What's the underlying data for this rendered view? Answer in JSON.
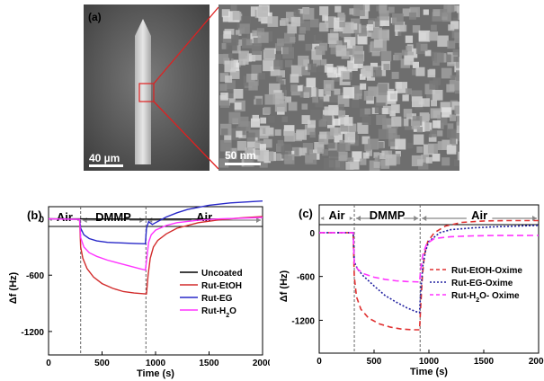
{
  "panel_a": {
    "label": "(a)",
    "scale_left": "40 µm",
    "scale_right": "50 nm"
  },
  "chart_data": [
    {
      "type": "line",
      "panel_label": "(b)",
      "xlabel": "Time (s)",
      "ylabel": "Δf (Hz)",
      "xlim": [
        0,
        2000
      ],
      "ylim": [
        -1450,
        130
      ],
      "x_ticks": [
        0,
        500,
        1000,
        1500,
        2000
      ],
      "y_ticks": [
        0,
        -600,
        -1200
      ],
      "grid": false,
      "legend_position": "center-right",
      "phase_boundaries": [
        300,
        910
      ],
      "phases": [
        {
          "label": "Air",
          "from": 0,
          "to": 300
        },
        {
          "label": "DMMP",
          "from": 300,
          "to": 910
        },
        {
          "label": "Air",
          "from": 910,
          "to": 2000
        }
      ],
      "series": [
        {
          "name": "Uncoated",
          "color": "#000000",
          "points": [
            [
              0,
              0
            ],
            [
              300,
              0
            ],
            [
              600,
              -2
            ],
            [
              900,
              -3
            ],
            [
              1200,
              -2
            ],
            [
              1650,
              -2
            ]
          ]
        },
        {
          "name": "Rut-EtOH",
          "color": "#d22b2b",
          "points": [
            [
              0,
              0
            ],
            [
              290,
              -5
            ],
            [
              300,
              -300
            ],
            [
              320,
              -420
            ],
            [
              360,
              -530
            ],
            [
              420,
              -620
            ],
            [
              500,
              -690
            ],
            [
              600,
              -740
            ],
            [
              700,
              -775
            ],
            [
              800,
              -790
            ],
            [
              905,
              -800
            ],
            [
              915,
              -800
            ],
            [
              930,
              -600
            ],
            [
              950,
              -420
            ],
            [
              980,
              -300
            ],
            [
              1020,
              -230
            ],
            [
              1100,
              -160
            ],
            [
              1200,
              -100
            ],
            [
              1400,
              -40
            ],
            [
              1600,
              -10
            ],
            [
              1800,
              10
            ],
            [
              2000,
              25
            ]
          ]
        },
        {
          "name": "Rut-EG",
          "color": "#2828c8",
          "points": [
            [
              0,
              0
            ],
            [
              290,
              -5
            ],
            [
              300,
              -100
            ],
            [
              330,
              -170
            ],
            [
              380,
              -210
            ],
            [
              450,
              -235
            ],
            [
              550,
              -250
            ],
            [
              650,
              -255
            ],
            [
              800,
              -262
            ],
            [
              905,
              -265
            ],
            [
              915,
              -100
            ],
            [
              935,
              -30
            ],
            [
              970,
              -60
            ],
            [
              1000,
              -40
            ],
            [
              1100,
              20
            ],
            [
              1200,
              65
            ],
            [
              1300,
              100
            ],
            [
              1500,
              145
            ],
            [
              1700,
              170
            ],
            [
              2000,
              190
            ]
          ]
        },
        {
          "name": "Rut-H2O",
          "color": "#ff33ff",
          "points": [
            [
              0,
              0
            ],
            [
              290,
              -5
            ],
            [
              300,
              -200
            ],
            [
              330,
              -300
            ],
            [
              380,
              -360
            ],
            [
              450,
              -400
            ],
            [
              550,
              -440
            ],
            [
              650,
              -470
            ],
            [
              750,
              -500
            ],
            [
              850,
              -530
            ],
            [
              905,
              -545
            ],
            [
              915,
              -450
            ],
            [
              935,
              -250
            ],
            [
              960,
              -170
            ],
            [
              1000,
              -120
            ],
            [
              1100,
              -70
            ],
            [
              1200,
              -40
            ],
            [
              1400,
              -15
            ],
            [
              1600,
              0
            ],
            [
              2000,
              15
            ]
          ]
        }
      ],
      "legend": [
        "Uncoated",
        "Rut-EtOH",
        "Rut-EG",
        "Rut-H2O"
      ]
    },
    {
      "type": "line",
      "panel_label": "(c)",
      "xlabel": "Time (s)",
      "ylabel": "Δf (Hz)",
      "xlim": [
        0,
        2000
      ],
      "ylim": [
        -1650,
        380
      ],
      "x_ticks": [
        0,
        500,
        1000,
        1500,
        2000
      ],
      "y_ticks": [
        0,
        -600,
        -1200
      ],
      "grid": false,
      "legend_position": "lower-right",
      "phase_boundaries": [
        320,
        920
      ],
      "phases": [
        {
          "label": "Air",
          "from": 0,
          "to": 320
        },
        {
          "label": "DMMP",
          "from": 320,
          "to": 920
        },
        {
          "label": "Air",
          "from": 920,
          "to": 2000
        }
      ],
      "series": [
        {
          "name": "Rut-EtOH-Oxime",
          "color": "#e03030",
          "dash": "6,4",
          "points": [
            [
              0,
              0
            ],
            [
              310,
              0
            ],
            [
              320,
              -600
            ],
            [
              340,
              -880
            ],
            [
              380,
              -1050
            ],
            [
              450,
              -1170
            ],
            [
              550,
              -1250
            ],
            [
              650,
              -1295
            ],
            [
              750,
              -1320
            ],
            [
              850,
              -1330
            ],
            [
              915,
              -1330
            ],
            [
              925,
              -1000
            ],
            [
              940,
              -600
            ],
            [
              960,
              -300
            ],
            [
              990,
              -120
            ],
            [
              1050,
              0
            ],
            [
              1150,
              90
            ],
            [
              1300,
              140
            ],
            [
              1500,
              160
            ],
            [
              1700,
              165
            ],
            [
              2000,
              165
            ]
          ]
        },
        {
          "name": "Rut-EG-Oxime",
          "color": "#2020a0",
          "dash": "2,2",
          "points": [
            [
              0,
              0
            ],
            [
              310,
              0
            ],
            [
              320,
              -400
            ],
            [
              350,
              -500
            ],
            [
              400,
              -590
            ],
            [
              500,
              -730
            ],
            [
              600,
              -860
            ],
            [
              700,
              -950
            ],
            [
              800,
              -1030
            ],
            [
              880,
              -1080
            ],
            [
              915,
              -1095
            ],
            [
              925,
              -800
            ],
            [
              945,
              -450
            ],
            [
              970,
              -250
            ],
            [
              1000,
              -120
            ],
            [
              1100,
              0
            ],
            [
              1200,
              40
            ],
            [
              1400,
              65
            ],
            [
              1600,
              80
            ],
            [
              1800,
              90
            ],
            [
              2000,
              100
            ]
          ]
        },
        {
          "name": "Rut-H2O- Oxime",
          "color": "#ff33ff",
          "dash": "7,4",
          "points": [
            [
              0,
              0
            ],
            [
              310,
              0
            ],
            [
              320,
              -420
            ],
            [
              350,
              -500
            ],
            [
              400,
              -560
            ],
            [
              500,
              -610
            ],
            [
              600,
              -640
            ],
            [
              700,
              -660
            ],
            [
              800,
              -670
            ],
            [
              915,
              -675
            ],
            [
              925,
              -500
            ],
            [
              945,
              -300
            ],
            [
              980,
              -150
            ],
            [
              1050,
              -80
            ],
            [
              1200,
              -55
            ],
            [
              1400,
              -45
            ],
            [
              1600,
              -40
            ],
            [
              2000,
              -38
            ]
          ]
        }
      ],
      "legend": [
        "Rut-EtOH-Oxime",
        "Rut-EG-Oxime",
        "Rut-H2O- Oxime"
      ]
    }
  ]
}
